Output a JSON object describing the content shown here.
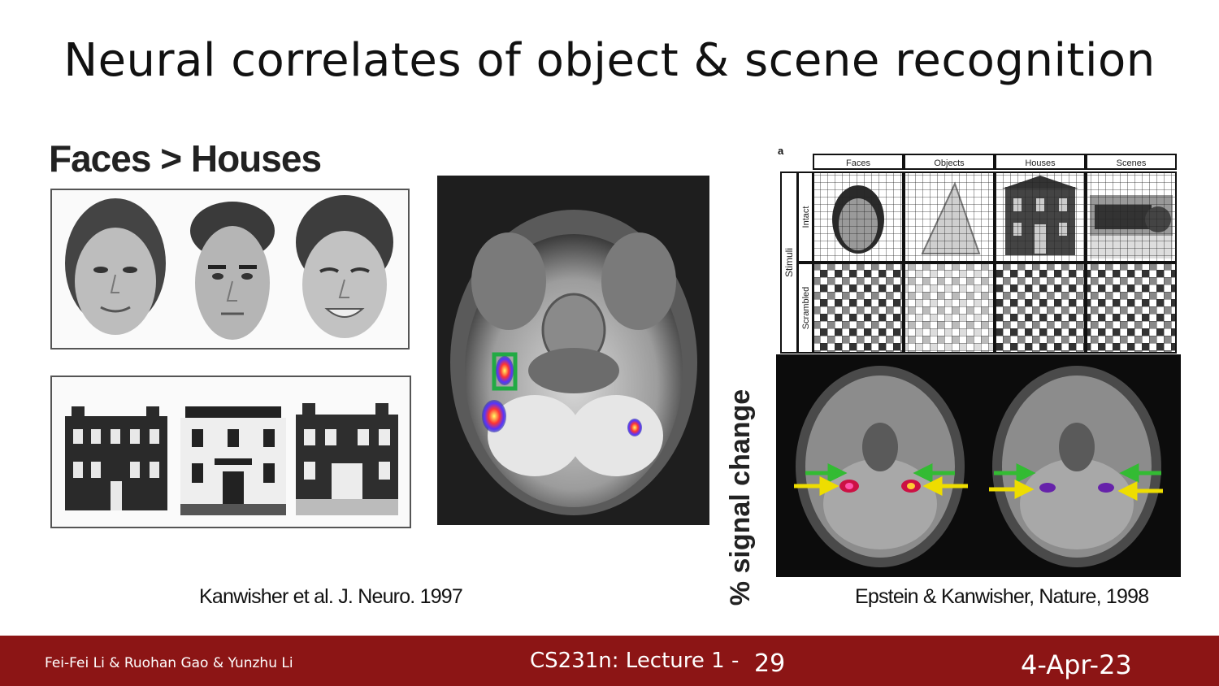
{
  "slide": {
    "title": "Neural correlates of object & scene recognition"
  },
  "left_figure": {
    "heading": "Faces > Houses",
    "y_axis_label": "% signal change",
    "caption": "Kanwisher et al.  J. Neuro. 1997"
  },
  "right_figure": {
    "panel_letter": "a",
    "columns": [
      "Faces",
      "Objects",
      "Houses",
      "Scenes"
    ],
    "row_group_label": "Stimuli",
    "rows": [
      "Intact",
      "Scrambled"
    ],
    "caption": "Epstein & Kanwisher, Nature, 1998"
  },
  "footer": {
    "authors": "Fei-Fei Li & Ruohan Gao & Yunzhu Li",
    "lecture": "CS231n: Lecture 1 -",
    "page": "29",
    "date": "4-Apr-23",
    "bg_color": "#8c1515"
  }
}
